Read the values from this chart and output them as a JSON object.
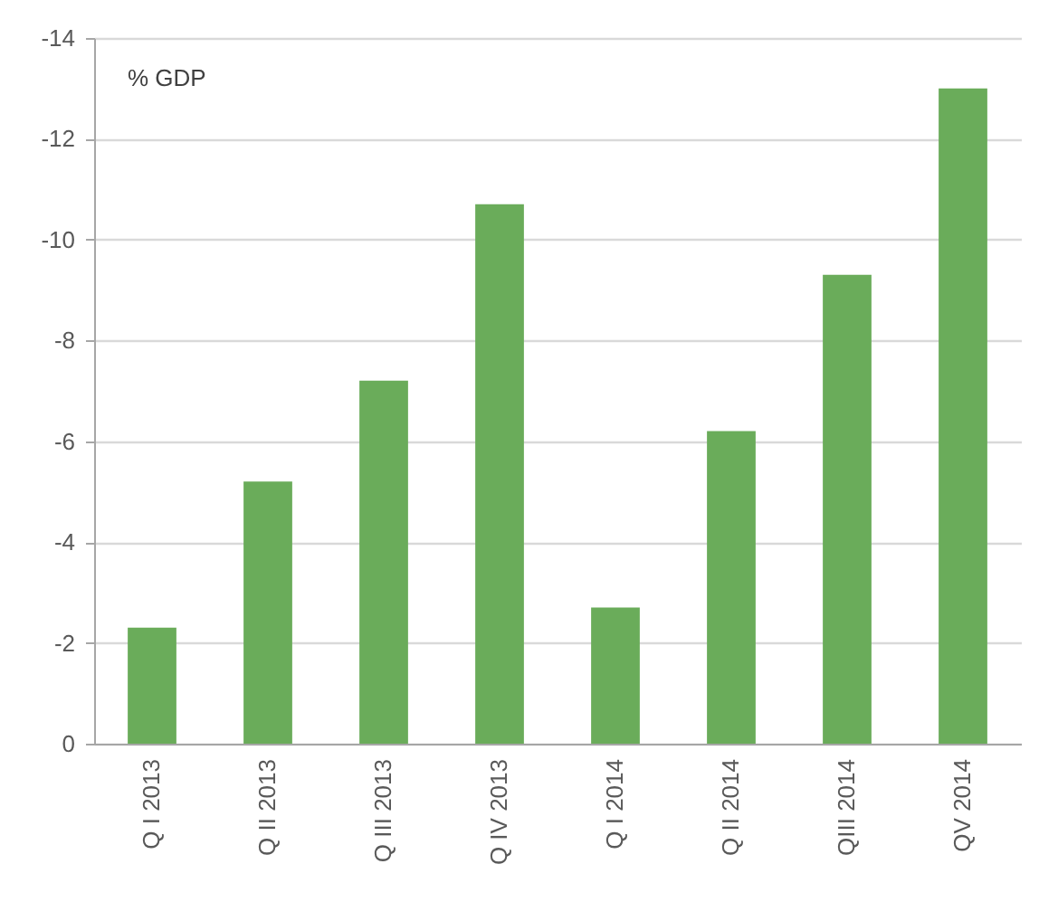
{
  "chart_data": {
    "type": "bar",
    "ylabel": "% GDP",
    "categories": [
      "Q I 2013",
      "Q II 2013",
      "Q III 2013",
      "Q IV 2013",
      "Q I 2014",
      "Q II 2014",
      "QIII 2014",
      "QV 2014"
    ],
    "values": [
      -2.3,
      -5.2,
      -7.2,
      -10.7,
      -2.7,
      -6.2,
      -9.3,
      -13.0
    ],
    "color": "#6aac5a",
    "ylim": [
      0,
      -14
    ],
    "yticks": [
      0,
      -2,
      -4,
      -6,
      -8,
      -10,
      -12,
      -14
    ],
    "grid": "y"
  }
}
